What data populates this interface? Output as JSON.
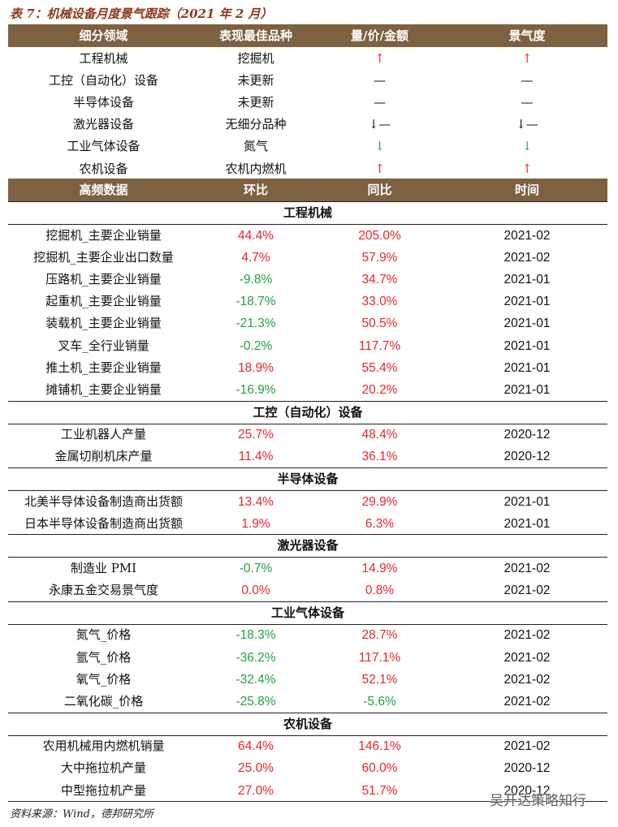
{
  "title": "表 7：机械设备月度景气跟踪（2021 年 2 月）",
  "summary": {
    "header": [
      "细分领域",
      "表现最佳品种",
      "量/价/金额",
      "景气度"
    ],
    "rows": [
      [
        "工程机械",
        "挖掘机",
        "↑",
        "↑"
      ],
      [
        "工控（自动化）设备",
        "未更新",
        "—",
        "—"
      ],
      [
        "半导体设备",
        "未更新",
        "—",
        "—"
      ],
      [
        "激光器设备",
        "无细分品种",
        "↓—",
        "↓—"
      ],
      [
        "工业气体设备",
        "氮气",
        "↓",
        "↓"
      ],
      [
        "农机设备",
        "农机内燃机",
        "↑",
        "↑"
      ]
    ]
  },
  "detail": {
    "header": [
      "高频数据",
      "环比",
      "同比",
      "时间"
    ],
    "sections": [
      {
        "name": "工程机械",
        "rows": [
          [
            "挖掘机_主要企业销量",
            "44.4%",
            "205.0%",
            "2021-02"
          ],
          [
            "挖掘机_主要企业出口数量",
            "4.7%",
            "57.9%",
            "2021-02"
          ],
          [
            "压路机_主要企业销量",
            "-9.8%",
            "34.7%",
            "2021-01"
          ],
          [
            "起重机_主要企业销量",
            "-18.7%",
            "33.0%",
            "2021-01"
          ],
          [
            "装载机_主要企业销量",
            "-21.3%",
            "50.5%",
            "2021-01"
          ],
          [
            "叉车_全行业销量",
            "-0.2%",
            "117.7%",
            "2021-01"
          ],
          [
            "推土机_主要企业销量",
            "18.9%",
            "55.4%",
            "2021-01"
          ],
          [
            "摊铺机_主要企业销量",
            "-16.9%",
            "20.2%",
            "2021-01"
          ]
        ]
      },
      {
        "name": "工控（自动化）设备",
        "rows": [
          [
            "工业机器人产量",
            "25.7%",
            "48.4%",
            "2020-12"
          ],
          [
            "金属切削机床产量",
            "11.4%",
            "36.1%",
            "2020-12"
          ]
        ]
      },
      {
        "name": "半导体设备",
        "rows": [
          [
            "北美半导体设备制造商出货额",
            "13.4%",
            "29.9%",
            "2021-01"
          ],
          [
            "日本半导体设备制造商出货额",
            "1.9%",
            "6.3%",
            "2021-01"
          ]
        ]
      },
      {
        "name": "激光器设备",
        "rows": [
          [
            "制造业 PMI",
            "-0.7%",
            "14.9%",
            "2021-02"
          ],
          [
            "永康五金交易景气度",
            "0.0%",
            "0.8%",
            "2021-02"
          ]
        ]
      },
      {
        "name": "工业气体设备",
        "rows": [
          [
            "氮气_价格",
            "-18.3%",
            "28.7%",
            "2021-02"
          ],
          [
            "氩气_价格",
            "-36.2%",
            "117.1%",
            "2021-02"
          ],
          [
            "氧气_价格",
            "-32.4%",
            "52.1%",
            "2021-02"
          ],
          [
            "二氧化碳_价格",
            "-25.8%",
            "-5.6%",
            "2021-02"
          ]
        ]
      },
      {
        "name": "农机设备",
        "rows": [
          [
            "农用机械用内燃机销量",
            "64.4%",
            "146.1%",
            "2021-02"
          ],
          [
            "大中拖拉机产量",
            "25.0%",
            "60.0%",
            "2020-12"
          ],
          [
            "中型拖拉机产量",
            "27.0%",
            "51.7%",
            "2020-12"
          ]
        ]
      }
    ]
  },
  "source": "资料来源：Wind，德邦研究所",
  "watermark": "吴开达策略知行"
}
